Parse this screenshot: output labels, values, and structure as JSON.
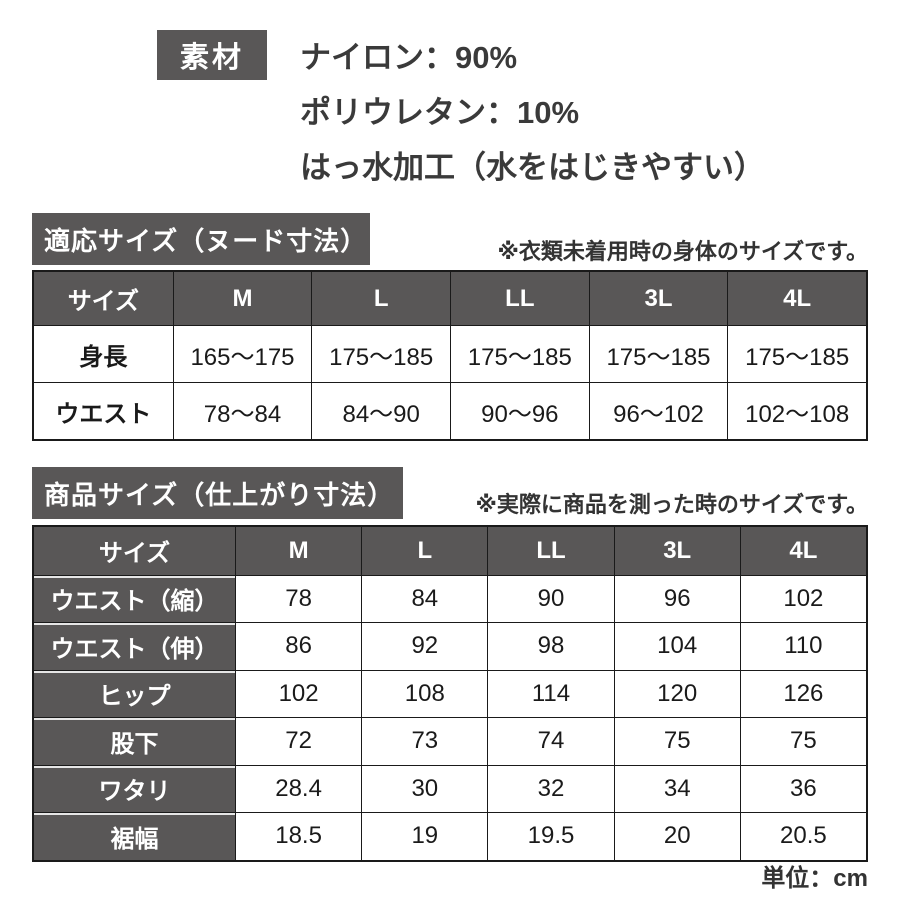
{
  "material": {
    "label": "素材",
    "lines": [
      "ナイロン：90%",
      "ポリウレタン：10%",
      "はっ水加工（水をはじきやすい）"
    ]
  },
  "size_tables": [
    {
      "title": "適応サイズ（ヌード寸法）",
      "note": "※衣類未着用時の身体のサイズです。",
      "columns": [
        "サイズ",
        "M",
        "L",
        "LL",
        "3L",
        "4L"
      ],
      "rows": [
        {
          "label": "身長",
          "values": [
            "165～175",
            "175～185",
            "175～185",
            "175～185",
            "175～185"
          ]
        },
        {
          "label": "ウエスト",
          "values": [
            "78～84",
            "84～90",
            "90～96",
            "96～102",
            "102～108"
          ]
        }
      ]
    },
    {
      "title": "商品サイズ（仕上がり寸法）",
      "note": "※実際に商品を測った時のサイズです。",
      "columns": [
        "サイズ",
        "M",
        "L",
        "LL",
        "3L",
        "4L"
      ],
      "rows": [
        {
          "label": "ウエスト（縮）",
          "values": [
            "78",
            "84",
            "90",
            "96",
            "102"
          ]
        },
        {
          "label": "ウエスト（伸）",
          "values": [
            "86",
            "92",
            "98",
            "104",
            "110"
          ]
        },
        {
          "label": "ヒップ",
          "values": [
            "102",
            "108",
            "114",
            "120",
            "126"
          ]
        },
        {
          "label": "股下",
          "values": [
            "72",
            "73",
            "74",
            "75",
            "75"
          ]
        },
        {
          "label": "ワタリ",
          "values": [
            "28.4",
            "30",
            "32",
            "34",
            "36"
          ]
        },
        {
          "label": "裾幅",
          "values": [
            "18.5",
            "19",
            "19.5",
            "20",
            "20.5"
          ]
        }
      ]
    }
  ],
  "unit_note": "単位：cm",
  "colors": {
    "dark_gray": "#595757",
    "border": "#1a1a1a",
    "text_dark": "#3a3a3a",
    "background": "#ffffff"
  }
}
